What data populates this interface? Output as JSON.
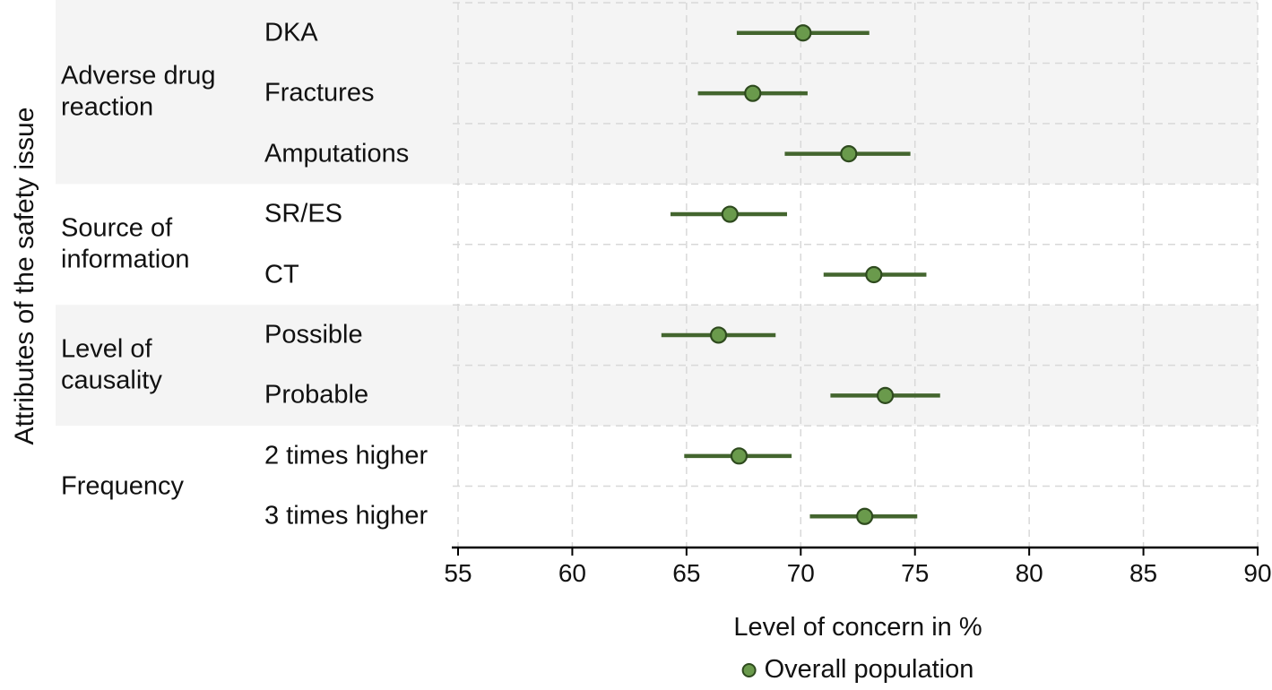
{
  "chart_data": {
    "type": "scatter",
    "subtype": "dot-with-ci (forest plot)",
    "title": "",
    "xlabel": "Level of concern in %",
    "ylabel": "Attributes of the safety issue",
    "xlim": [
      55,
      90
    ],
    "xticks": [
      55,
      60,
      65,
      70,
      75,
      80,
      85,
      90
    ],
    "grid": "dashed",
    "legend": [
      "Overall population"
    ],
    "legend_position": "bottom",
    "groups": [
      {
        "label": "Adverse drug reaction",
        "items": [
          {
            "label": "DKA",
            "value": 70.1,
            "ci": [
              67.2,
              73.0
            ]
          },
          {
            "label": "Fractures",
            "value": 67.9,
            "ci": [
              65.5,
              70.3
            ]
          },
          {
            "label": "Amputations",
            "value": 72.1,
            "ci": [
              69.3,
              74.8
            ]
          }
        ]
      },
      {
        "label": "Source of information",
        "items": [
          {
            "label": "SR/ES",
            "value": 66.9,
            "ci": [
              64.3,
              69.4
            ]
          },
          {
            "label": "CT",
            "value": 73.2,
            "ci": [
              71.0,
              75.5
            ]
          }
        ]
      },
      {
        "label": "Level of causality",
        "items": [
          {
            "label": "Possible",
            "value": 66.4,
            "ci": [
              63.9,
              68.9
            ]
          },
          {
            "label": "Probable",
            "value": 73.7,
            "ci": [
              71.3,
              76.1
            ]
          }
        ]
      },
      {
        "label": "Frequency",
        "items": [
          {
            "label": "2 times higher",
            "value": 67.3,
            "ci": [
              64.9,
              69.6
            ]
          },
          {
            "label": "3 times higher",
            "value": 72.8,
            "ci": [
              70.4,
              75.1
            ]
          }
        ]
      }
    ],
    "colors": {
      "point_fill": "#6a9a4c",
      "point_stroke": "#2e4a1e",
      "ci_line": "#43652e",
      "band": "#f4f4f4",
      "grid": "#d8d8d8",
      "axis": "#000000",
      "text": "#111111"
    }
  }
}
